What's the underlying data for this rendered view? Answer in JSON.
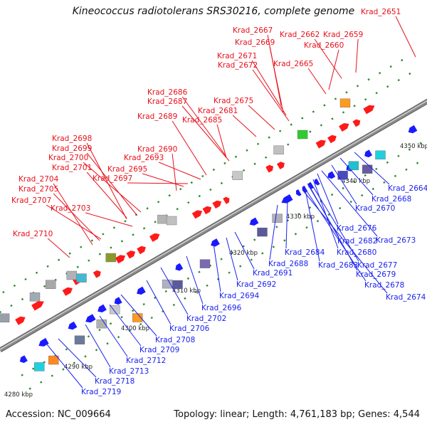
{
  "title": "Kineococcus radiotolerans SRS30216, complete genome",
  "footer": {
    "accession": "Accession: NC_009664",
    "summary": "Topology: linear; Length: 4,761,183 bp; Genes: 4,544"
  },
  "scale_labels": [
    "4280 kbp",
    "4290 kbp",
    "4300 kbp",
    "4310 kbp",
    "4320 kbp",
    "4330 kbp",
    "4340 kbp",
    "4350 kbp"
  ],
  "colors": {
    "forward_gene": "#ff1a1a",
    "reverse_gene": "#1a1aff",
    "forward_label": "#e8101a",
    "reverse_label": "#1a22ee",
    "backbone": "#8a8a8a",
    "tick": "#2e8b2e"
  },
  "forward_labels": [
    "Krad_2651",
    "Krad_2667",
    "Krad_2662",
    "Krad_2659",
    "Krad_2669",
    "Krad_2660",
    "Krad_2671",
    "Krad_2672",
    "Krad_2665",
    "Krad_2686",
    "Krad_2687",
    "Krad_2675",
    "Krad_2681",
    "Krad_2689",
    "Krad_2685",
    "Krad_2698",
    "Krad_2699",
    "Krad_2690",
    "Krad_2700",
    "Krad_2693",
    "Krad_2701",
    "Krad_2695",
    "Krad_2697",
    "Krad_2704",
    "Krad_2705",
    "Krad_2707",
    "Krad_2703",
    "Krad_2710"
  ],
  "reverse_labels": [
    "Krad_2664",
    "Krad_2668",
    "Krad_2670",
    "Krad_2676",
    "Krad_2673",
    "Krad_2682",
    "Krad_2680",
    "Krad_2684",
    "Krad_2677",
    "Krad_2688",
    "Krad_2683",
    "Krad_2679",
    "Krad_2678",
    "Krad_2674",
    "Krad_2691",
    "Krad_2692",
    "Krad_2694",
    "Krad_2696",
    "Krad_2702",
    "Krad_2706",
    "Krad_2708",
    "Krad_2709",
    "Krad_2712",
    "Krad_2713",
    "Krad_2718",
    "Krad_2719"
  ]
}
